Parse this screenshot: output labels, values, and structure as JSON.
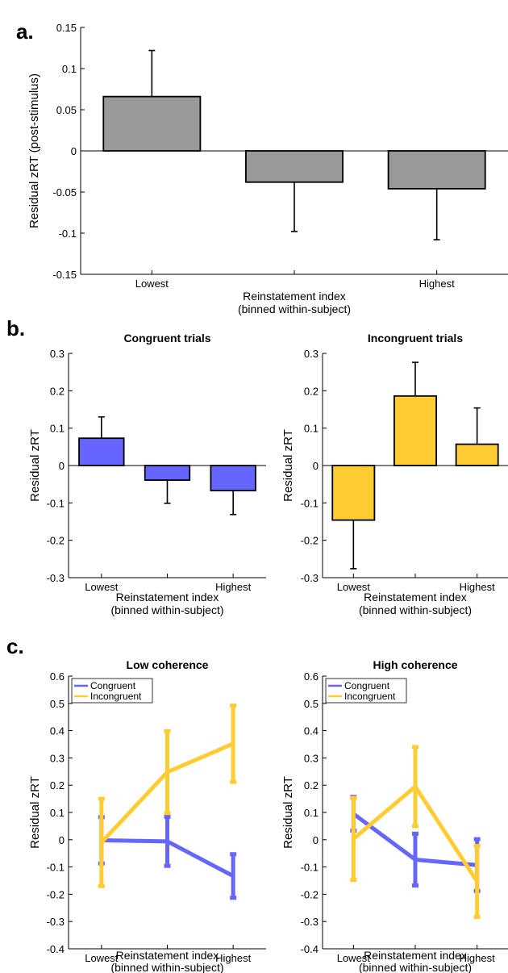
{
  "chart_data": [
    {
      "id": "a",
      "panel_label": "a.",
      "type": "bar",
      "title": "",
      "ylabel": "Residual zRT (post-stimulus)",
      "xlabel": "Reinstatement index",
      "xlabel2": "(binned within-subject)",
      "categories": [
        "Lowest",
        "",
        "Highest"
      ],
      "values": [
        0.066,
        -0.038,
        -0.046
      ],
      "errors": [
        0.056,
        0.06,
        0.062
      ],
      "ylim": [
        -0.15,
        0.15
      ],
      "yticks": [
        -0.15,
        -0.1,
        -0.05,
        0,
        0.05,
        0.1,
        0.15
      ],
      "yticklabels": [
        "-0.15",
        "-0.1",
        "-0.05",
        "0",
        "0.05",
        "0.1",
        "0.15"
      ],
      "bar_color": "#999999"
    },
    {
      "id": "b1",
      "panel_label": "b.",
      "type": "bar",
      "title": "Congruent trials",
      "ylabel": "Residual zRT",
      "xlabel": "Reinstatement index",
      "xlabel2": "(binned within-subject)",
      "categories": [
        "Lowest",
        "",
        "Highest"
      ],
      "values": [
        0.073,
        -0.039,
        -0.067
      ],
      "errors": [
        0.057,
        0.062,
        0.064
      ],
      "ylim": [
        -0.3,
        0.3
      ],
      "yticks": [
        -0.3,
        -0.2,
        -0.1,
        0,
        0.1,
        0.2,
        0.3
      ],
      "yticklabels": [
        "-0.3",
        "-0.2",
        "-0.1",
        "0",
        "0.1",
        "0.2",
        "0.3"
      ],
      "bar_color": "#6666ff"
    },
    {
      "id": "b2",
      "panel_label": "",
      "type": "bar",
      "title": "Incongruent trials",
      "ylabel": "Residual zRT",
      "xlabel": "Reinstatement index",
      "xlabel2": "(binned within-subject)",
      "categories": [
        "Lowest",
        "",
        "Highest"
      ],
      "values": [
        -0.146,
        0.186,
        0.057
      ],
      "errors": [
        0.13,
        0.09,
        0.097
      ],
      "ylim": [
        -0.3,
        0.3
      ],
      "yticks": [
        -0.3,
        -0.2,
        -0.1,
        0,
        0.1,
        0.2,
        0.3
      ],
      "yticklabels": [
        "-0.3",
        "-0.2",
        "-0.1",
        "0",
        "0.1",
        "0.2",
        "0.3"
      ],
      "bar_color": "#ffcc33"
    },
    {
      "id": "c1",
      "panel_label": "c.",
      "type": "line",
      "title": "Low coherence",
      "ylabel": "Residual zRT",
      "xlabel": "Reinstatement index",
      "xlabel2": "(binned within-subject)",
      "categories": [
        "Lowest",
        "",
        "Highest"
      ],
      "ylim": [
        -0.4,
        0.6
      ],
      "yticks": [
        -0.4,
        -0.3,
        -0.2,
        -0.1,
        0,
        0.1,
        0.2,
        0.3,
        0.4,
        0.5,
        0.6
      ],
      "yticklabels": [
        "-0.4",
        "-0.3",
        "-0.2",
        "-0.1",
        "0",
        "0.1",
        "0.2",
        "0.3",
        "0.4",
        "0.5",
        "0.6"
      ],
      "legend": "top-left",
      "series": [
        {
          "name": "Congruent",
          "color": "#6666ff",
          "values": [
            -0.002,
            -0.006,
            -0.133
          ],
          "errors": [
            0.085,
            0.09,
            0.08
          ]
        },
        {
          "name": "Incongruent",
          "color": "#ffcc33",
          "values": [
            -0.01,
            0.248,
            0.352
          ],
          "errors": [
            0.16,
            0.15,
            0.14
          ]
        }
      ]
    },
    {
      "id": "c2",
      "panel_label": "",
      "type": "line",
      "title": "High coherence",
      "ylabel": "Residual zRT",
      "xlabel": "Reinstatement index",
      "xlabel2": "(binned within-subject)",
      "categories": [
        "Lowest",
        "",
        "Highest"
      ],
      "ylim": [
        -0.4,
        0.6
      ],
      "yticks": [
        -0.4,
        -0.3,
        -0.2,
        -0.1,
        0,
        0.1,
        0.2,
        0.3,
        0.4,
        0.5,
        0.6
      ],
      "yticklabels": [
        "-0.4",
        "-0.3",
        "-0.2",
        "-0.1",
        "0",
        "0.1",
        "0.2",
        "0.3",
        "0.4",
        "0.5",
        "0.6"
      ],
      "legend": "top-left",
      "series": [
        {
          "name": "Congruent",
          "color": "#6666ff",
          "values": [
            0.095,
            -0.073,
            -0.093
          ],
          "errors": [
            0.062,
            0.095,
            0.095
          ]
        },
        {
          "name": "Incongruent",
          "color": "#ffcc33",
          "values": [
            0.003,
            0.195,
            -0.153
          ],
          "errors": [
            0.15,
            0.145,
            0.13
          ]
        }
      ]
    }
  ]
}
